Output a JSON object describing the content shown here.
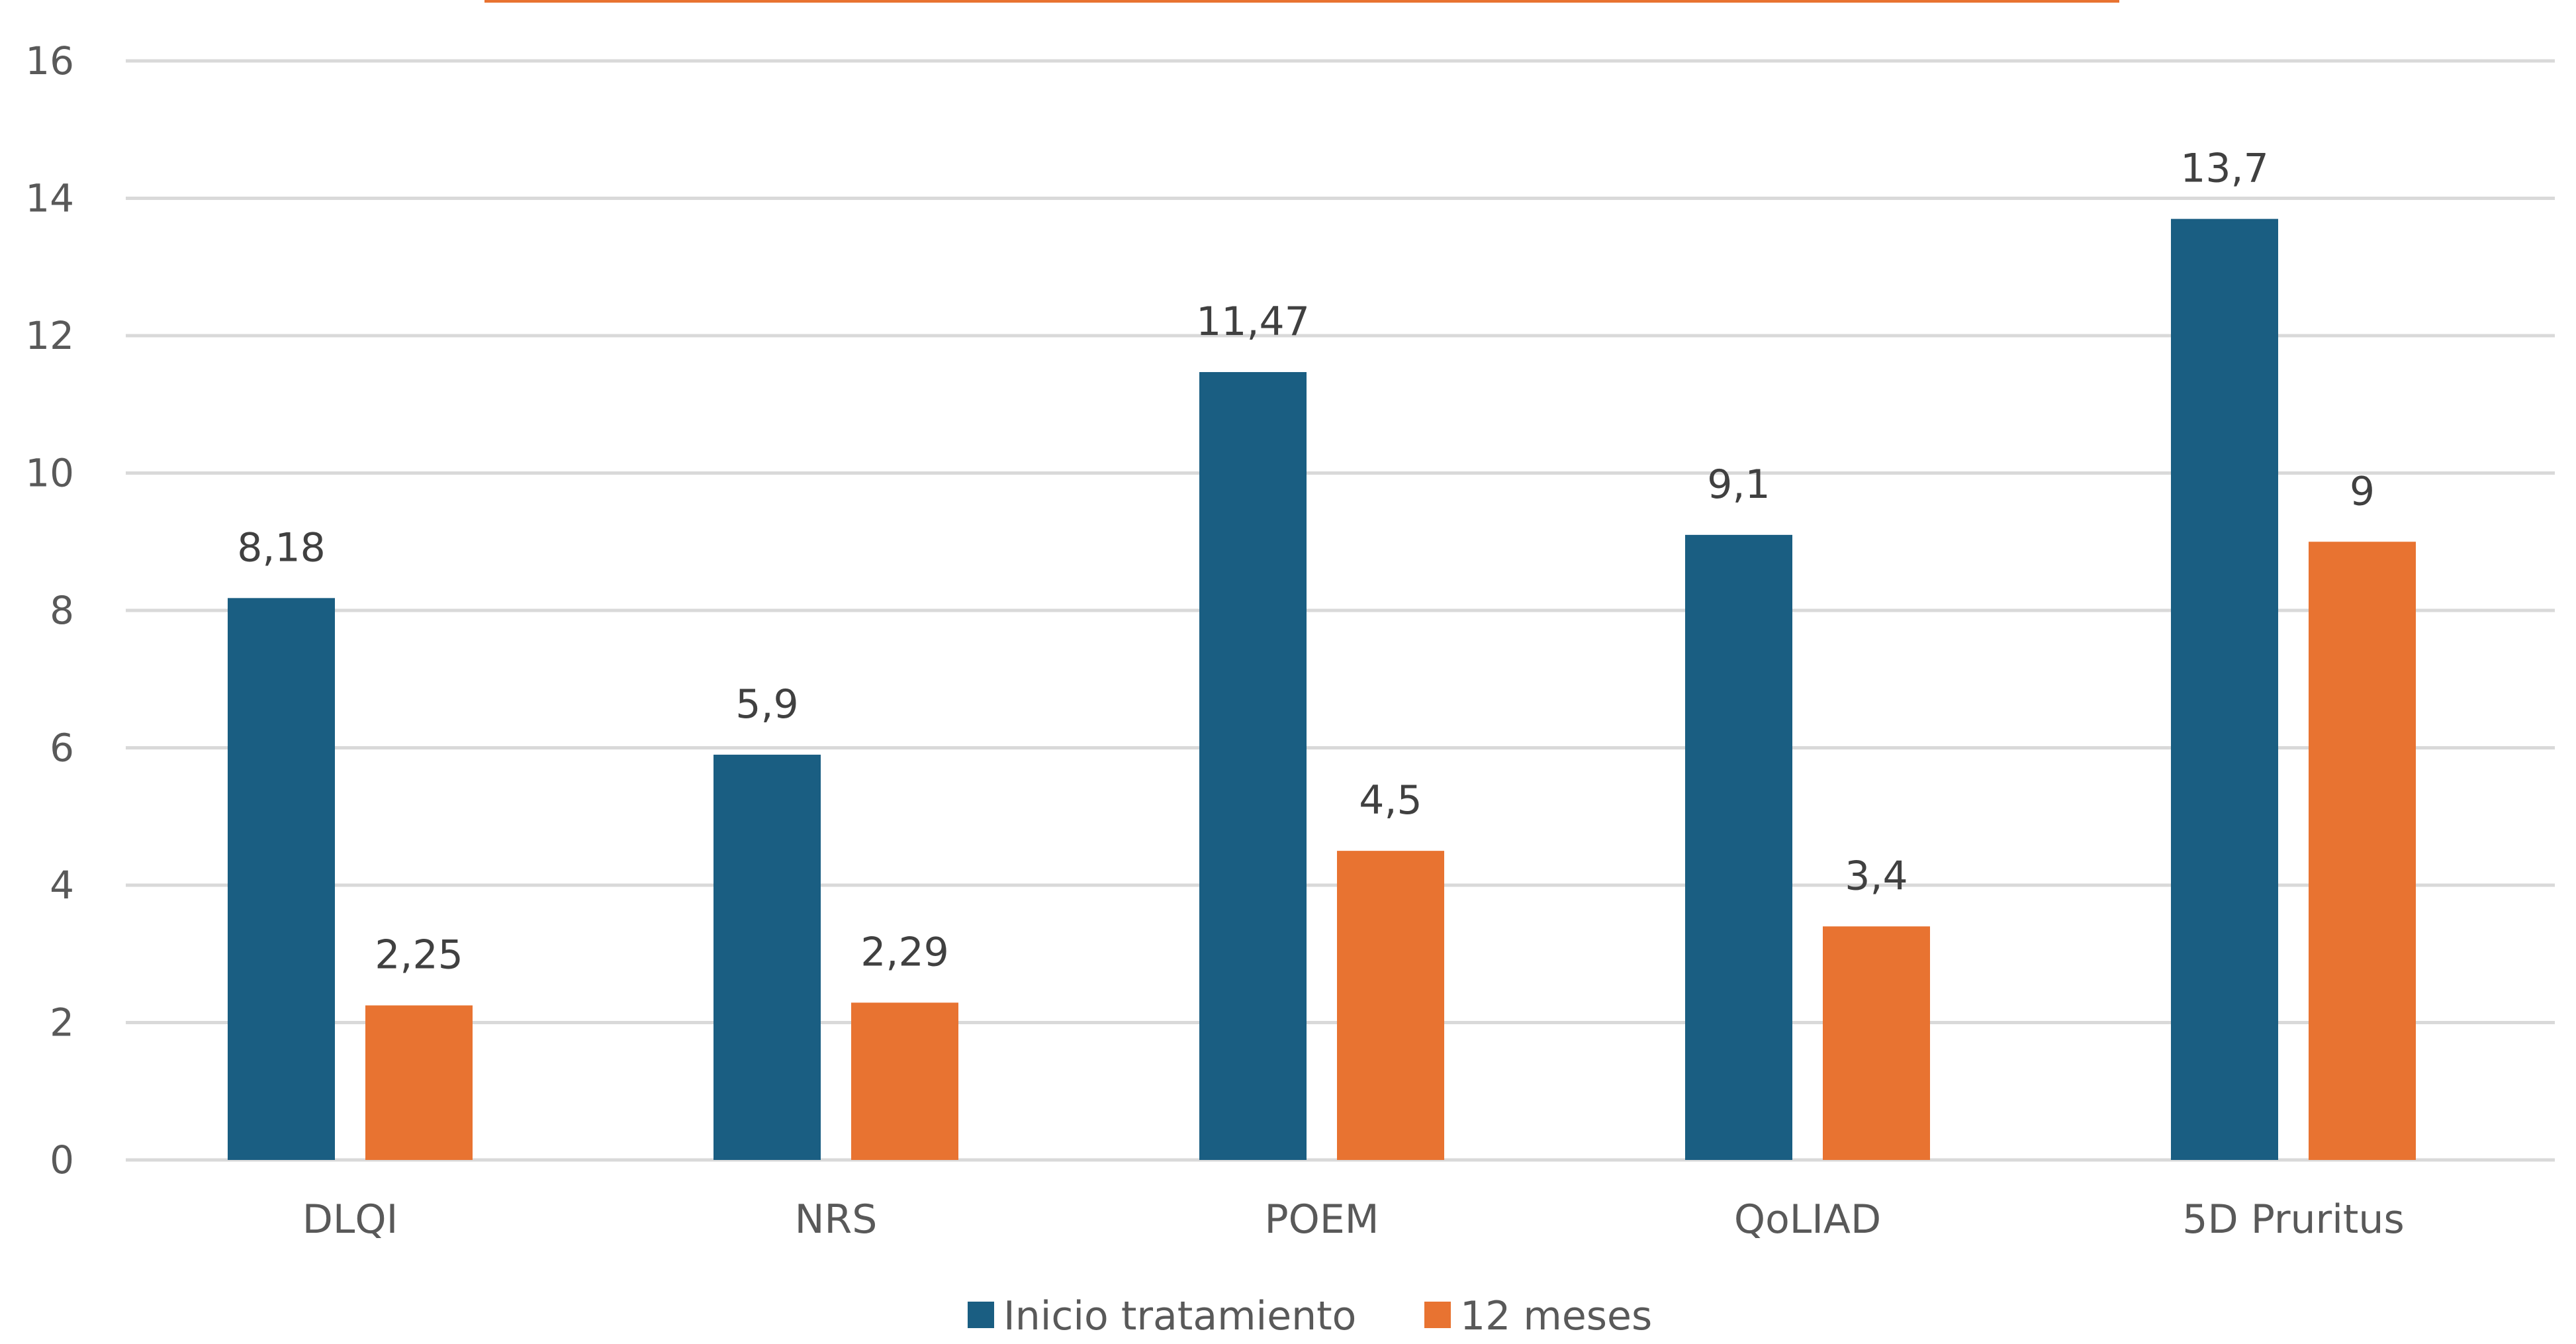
{
  "chart_data": {
    "type": "bar",
    "categories": [
      "DLQI",
      "NRS",
      "POEM",
      "QoLIAD",
      "5D Pruritus"
    ],
    "series": [
      {
        "name": "Inicio tratamiento",
        "values": [
          8.18,
          5.9,
          11.47,
          9.1,
          13.7
        ],
        "labels": [
          "8,18",
          "5,9",
          "11,47",
          "9,1",
          "13,7"
        ],
        "color": "#1a5e82"
      },
      {
        "name": "12 meses",
        "values": [
          2.25,
          2.29,
          4.5,
          3.4,
          9
        ],
        "labels": [
          "2,25",
          "2,29",
          "4,5",
          "3,4",
          "9"
        ],
        "color": "#e87331"
      }
    ],
    "ylim": [
      0,
      16
    ],
    "yticks": [
      0,
      2,
      4,
      6,
      8,
      10,
      12,
      14,
      16
    ],
    "grid": true,
    "legend": "bottom",
    "title_bar_color": "#e87331"
  }
}
